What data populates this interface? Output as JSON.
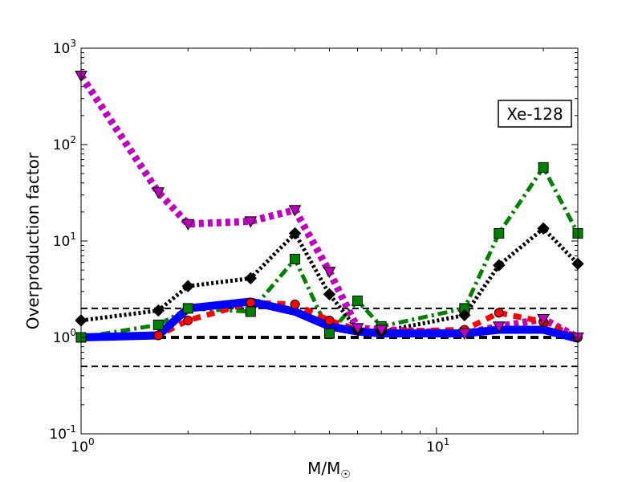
{
  "chart_data": {
    "type": "line",
    "title": "",
    "xlabel": "M/M",
    "xlabel_sub": "☉",
    "ylabel": "Overproduction factor",
    "xscale": "log",
    "yscale": "log",
    "xlim": [
      1,
      25
    ],
    "ylim": [
      0.1,
      1000
    ],
    "grid": false,
    "annotation": "Xe-128",
    "annotation_position": "top-right",
    "x_ticks": [
      {
        "value": 1,
        "base": "10",
        "exp": "0"
      },
      {
        "value": 10,
        "base": "10",
        "exp": "1"
      }
    ],
    "y_ticks": [
      {
        "value": 0.1,
        "base": "10",
        "exp": "-1"
      },
      {
        "value": 1,
        "base": "10",
        "exp": "0"
      },
      {
        "value": 10,
        "base": "10",
        "exp": "1"
      },
      {
        "value": 100,
        "base": "10",
        "exp": "2"
      },
      {
        "value": 1000,
        "base": "10",
        "exp": "3"
      }
    ],
    "reference_lines": [
      {
        "y": 2.0,
        "color": "#000000",
        "style": "dashed"
      },
      {
        "y": 1.0,
        "color": "#000000",
        "style": "dashed-thick"
      },
      {
        "y": 0.5,
        "color": "#000000",
        "style": "dashed"
      }
    ],
    "series": [
      {
        "color": "#0000ff",
        "line": "solid",
        "marker": "none",
        "x": [
          1,
          1.65,
          2,
          3,
          4,
          5,
          6,
          7,
          12,
          15,
          20,
          25
        ],
        "y": [
          1.0,
          1.05,
          2.0,
          2.35,
          1.85,
          1.3,
          1.15,
          1.1,
          1.1,
          1.2,
          1.2,
          0.97
        ]
      },
      {
        "color": "#ff0000",
        "line": "dashed",
        "marker": "circle",
        "x": [
          1,
          1.65,
          2,
          3,
          4,
          5,
          6,
          7,
          12,
          15,
          20,
          25
        ],
        "y": [
          1.0,
          1.05,
          1.5,
          2.3,
          2.2,
          1.5,
          1.2,
          1.15,
          1.2,
          1.8,
          1.45,
          1.0
        ]
      },
      {
        "color": "#008000",
        "line": "dashdot",
        "marker": "square",
        "x": [
          1,
          1.65,
          2,
          3,
          4,
          5,
          6,
          7,
          12,
          15,
          20,
          25
        ],
        "y": [
          1.0,
          1.35,
          2.0,
          1.85,
          6.5,
          1.1,
          2.4,
          1.3,
          2.0,
          12.0,
          58.0,
          12.0
        ]
      },
      {
        "color": "#000000",
        "line": "dotted",
        "marker": "diamond",
        "x": [
          1,
          1.65,
          2,
          3,
          4,
          5,
          6,
          7,
          12,
          15,
          20,
          25
        ],
        "y": [
          1.5,
          1.9,
          3.4,
          4.1,
          12.0,
          2.8,
          1.2,
          1.15,
          1.7,
          5.6,
          13.5,
          5.8
        ]
      },
      {
        "color": "#bf00bf",
        "line": "dotted",
        "marker": "triangle-down",
        "x": [
          1,
          1.65,
          2,
          3,
          4,
          5,
          6,
          7,
          12,
          15,
          20,
          25
        ],
        "y": [
          520,
          32,
          15,
          16,
          21,
          4.8,
          1.25,
          1.2,
          1.1,
          1.3,
          1.55,
          1.0
        ]
      }
    ]
  }
}
